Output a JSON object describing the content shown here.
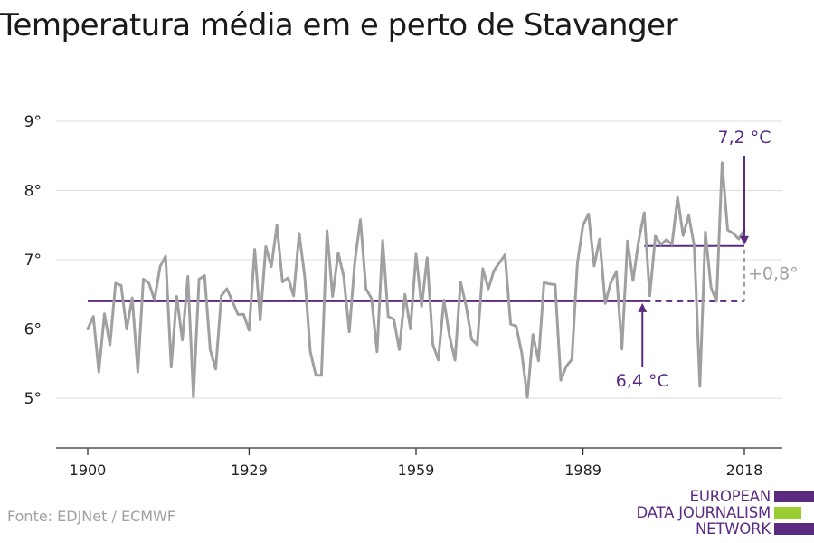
{
  "title": "Temperatura média em e perto de Stavanger",
  "source": "Fonte: EDJNet / ECMWF",
  "logo": {
    "lines": [
      "EUROPEAN",
      "DATA JOURNALISM",
      "NETWORK"
    ]
  },
  "colors": {
    "series": "#a0a0a0",
    "baseline": "#5b2b82",
    "accent_green": "#9acd32",
    "grid": "#dddddd"
  },
  "chart_data": {
    "type": "line",
    "title": "Temperatura média em e perto de Stavanger",
    "xlabel": "",
    "ylabel": "",
    "xlim": [
      1900,
      2018
    ],
    "ylim": [
      4.3,
      9
    ],
    "x_ticks": [
      "1900",
      "1929",
      "1959",
      "1989",
      "2018"
    ],
    "y_ticks": [
      "5°",
      "6°",
      "7°",
      "8°",
      "9°"
    ],
    "grid": true,
    "series": [
      {
        "x": [
          1900,
          1901,
          1902,
          1903,
          1904,
          1905,
          1906,
          1907,
          1908,
          1909,
          1910,
          1911,
          1912,
          1913,
          1914,
          1915,
          1916,
          1917,
          1918,
          1919,
          1920,
          1921,
          1922,
          1923,
          1924,
          1925,
          1926,
          1927,
          1928,
          1929,
          1930,
          1931,
          1932,
          1933,
          1934,
          1935,
          1936,
          1937,
          1938,
          1939,
          1940,
          1941,
          1942,
          1943,
          1944,
          1945,
          1946,
          1947,
          1948,
          1949,
          1950,
          1951,
          1952,
          1953,
          1954,
          1955,
          1956,
          1957,
          1958,
          1959,
          1960,
          1961,
          1962,
          1963,
          1964,
          1965,
          1966,
          1967,
          1968,
          1969,
          1970,
          1971,
          1972,
          1973,
          1974,
          1975,
          1976,
          1977,
          1978,
          1979,
          1980,
          1981,
          1982,
          1983,
          1984,
          1985,
          1986,
          1987,
          1988,
          1989,
          1990,
          1991,
          1992,
          1993,
          1994,
          1995,
          1996,
          1997,
          1998,
          1999,
          2000,
          2001,
          2002,
          2003,
          2004,
          2005,
          2006,
          2007,
          2008,
          2009,
          2010,
          2011,
          2012,
          2013,
          2014,
          2015,
          2016,
          2017,
          2018
        ],
        "y": [
          6.0,
          6.18,
          5.38,
          6.22,
          5.77,
          6.66,
          6.63,
          6.0,
          6.45,
          5.38,
          6.72,
          6.66,
          6.42,
          6.9,
          7.05,
          5.45,
          6.47,
          5.84,
          6.76,
          5.02,
          6.72,
          6.77,
          5.7,
          5.42,
          6.48,
          6.58,
          6.4,
          6.21,
          6.21,
          5.98,
          7.15,
          6.13,
          7.19,
          6.9,
          7.5,
          6.68,
          6.74,
          6.48,
          7.38,
          6.76,
          5.67,
          5.33,
          5.33,
          7.42,
          6.47,
          7.1,
          6.76,
          5.96,
          6.97,
          7.58,
          6.58,
          6.44,
          5.67,
          7.28,
          6.18,
          6.14,
          5.7,
          6.5,
          6.0,
          7.08,
          6.33,
          7.03,
          5.78,
          5.55,
          6.42,
          5.9,
          5.55,
          6.68,
          6.33,
          5.85,
          5.77,
          6.87,
          6.58,
          6.84,
          6.96,
          7.07,
          6.07,
          6.04,
          5.65,
          5.01,
          5.92,
          5.54,
          6.67,
          6.65,
          6.64,
          5.26,
          5.46,
          5.56,
          6.95,
          7.5,
          7.66,
          6.91,
          7.3,
          6.37,
          6.67,
          6.83,
          5.71,
          7.27,
          6.7,
          7.27,
          7.68,
          6.48,
          7.34,
          7.22,
          7.29,
          7.22,
          7.9,
          7.35,
          7.64,
          7.2,
          5.17,
          7.4,
          6.6,
          6.4,
          8.4,
          7.43,
          7.38,
          7.3,
          7.43
        ]
      }
    ],
    "reference_lines": [
      {
        "x_from": 1900,
        "x_to": 2018,
        "x_solid_to": 2000,
        "y": 6.4,
        "label": "6,4 °C",
        "label_year": 2000
      },
      {
        "x_from": 2000,
        "x_to": 2018,
        "y": 7.2,
        "label": "7,2 °C",
        "label_year": 2018
      }
    ],
    "difference_label": "+0,8°"
  }
}
